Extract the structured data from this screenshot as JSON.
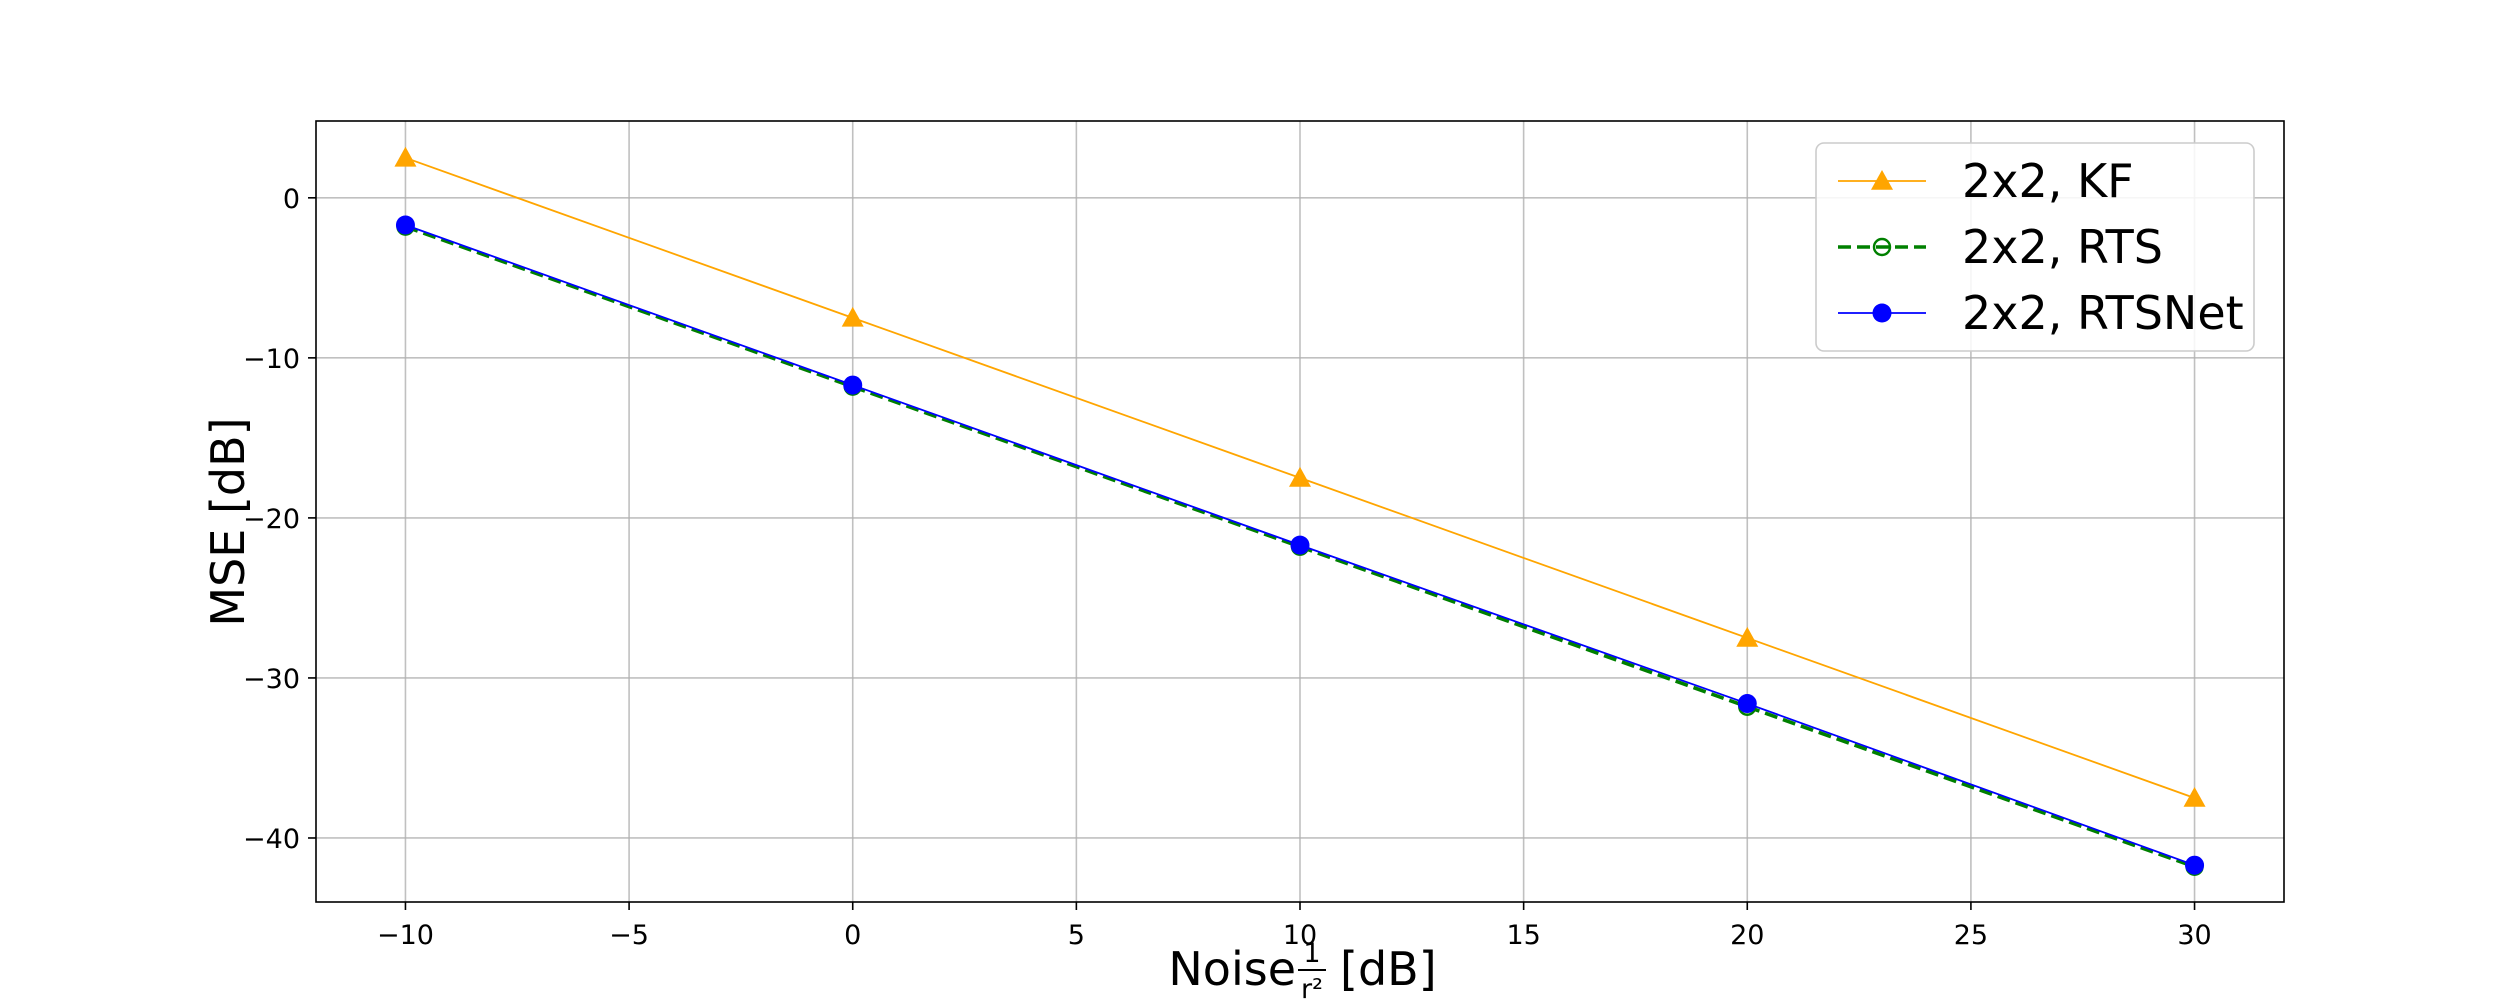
{
  "chart_data": {
    "type": "line",
    "title": "",
    "xlabel": "Noise",
    "xlabel_fraction": {
      "numerator": "1",
      "denominator": "r²"
    },
    "xlabel_unit": "[dB]",
    "ylabel": "MSE [dB]",
    "xlim": [
      -12,
      32
    ],
    "ylim": [
      -44,
      4.8
    ],
    "xticks": [
      -10,
      -5,
      0,
      5,
      10,
      15,
      20,
      25,
      30
    ],
    "yticks": [
      0,
      -10,
      -20,
      -30,
      -40
    ],
    "grid": true,
    "legend_position": "top-right",
    "x": [
      -10,
      0,
      10,
      20,
      30
    ],
    "series": [
      {
        "name": "2x2, KF",
        "values": [
          2.5,
          -7.5,
          -17.5,
          -27.5,
          -37.5
        ],
        "color": "#ffa500",
        "marker": "triangle",
        "line_style": "solid"
      },
      {
        "name": "2x2, RTS",
        "values": [
          -1.8,
          -11.8,
          -21.8,
          -31.8,
          -41.8
        ],
        "color": "#008000",
        "marker": "hollow-circle",
        "line_style": "dashed"
      },
      {
        "name": "2x2, RTSNet",
        "values": [
          -1.7,
          -11.7,
          -21.7,
          -31.6,
          -41.7
        ],
        "color": "#0000ff",
        "marker": "filled-circle",
        "line_style": "solid"
      }
    ]
  }
}
